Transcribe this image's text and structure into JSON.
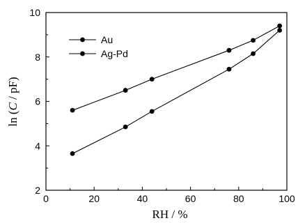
{
  "chart_data": {
    "type": "line",
    "xlabel": "RH / %",
    "ylabel_prefix": "ln (",
    "ylabel_var": "C",
    "ylabel_suffix": " / pF)",
    "xlim": [
      0,
      100
    ],
    "ylim": [
      2,
      10
    ],
    "x_ticks": [
      0,
      20,
      40,
      60,
      80,
      100
    ],
    "y_ticks": [
      2,
      4,
      6,
      8,
      10
    ],
    "legend_position": "top-left",
    "series": [
      {
        "name": "Au",
        "x": [
          11,
          33,
          44,
          76,
          86,
          97
        ],
        "y": [
          5.6,
          6.5,
          7.0,
          8.3,
          8.75,
          9.4
        ]
      },
      {
        "name": "Ag-Pd",
        "x": [
          11,
          33,
          44,
          76,
          86,
          97
        ],
        "y": [
          3.65,
          4.85,
          5.55,
          7.45,
          8.15,
          9.2
        ]
      }
    ]
  }
}
